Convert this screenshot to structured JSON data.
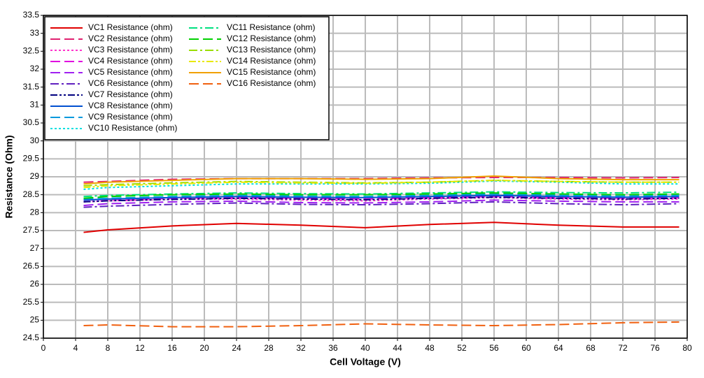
{
  "chart_data": {
    "type": "line",
    "xlabel": "Cell Voltage (V)",
    "ylabel": "Resistance (Ohm)",
    "x": [
      5,
      8,
      16,
      24,
      32,
      40,
      48,
      56,
      64,
      72,
      79
    ],
    "xlim": [
      0,
      80
    ],
    "xticks": [
      0,
      4,
      8,
      12,
      16,
      20,
      24,
      28,
      32,
      36,
      40,
      44,
      48,
      52,
      56,
      60,
      64,
      68,
      72,
      76,
      80
    ],
    "ylim": [
      24.5,
      33.5
    ],
    "yticks": [
      24.5,
      25,
      25.5,
      26,
      26.5,
      27,
      27.5,
      28,
      28.5,
      29,
      29.5,
      30,
      30.5,
      31,
      31.5,
      32,
      32.5,
      33,
      33.5
    ],
    "grid": true,
    "legend": "upper left",
    "series": [
      {
        "name": "VC1 Resistance (ohm)",
        "color": "#e00000",
        "dash": "solid",
        "values": [
          27.45,
          27.52,
          27.63,
          27.7,
          27.65,
          27.58,
          27.67,
          27.73,
          27.65,
          27.6,
          27.6
        ]
      },
      {
        "name": "VC2 Resistance (ohm)",
        "color": "#e0206f",
        "dash": "dashed",
        "values": [
          28.85,
          28.87,
          28.93,
          28.95,
          28.95,
          28.95,
          28.97,
          28.98,
          28.98,
          28.97,
          28.98
        ]
      },
      {
        "name": "VC3 Resistance (ohm)",
        "color": "#ff33cc",
        "dash": "dotted",
        "values": [
          28.3,
          28.33,
          28.37,
          28.38,
          28.35,
          28.33,
          28.38,
          28.42,
          28.38,
          28.36,
          28.38
        ]
      },
      {
        "name": "VC4 Resistance (ohm)",
        "color": "#e000e0",
        "dash": "dashed",
        "values": [
          28.35,
          28.37,
          28.4,
          28.42,
          28.4,
          28.38,
          28.42,
          28.45,
          28.42,
          28.4,
          28.42
        ]
      },
      {
        "name": "VC5 Resistance (ohm)",
        "color": "#a020f0",
        "dash": "dashed",
        "values": [
          28.2,
          28.25,
          28.3,
          28.32,
          28.28,
          28.27,
          28.3,
          28.35,
          28.32,
          28.3,
          28.3
        ]
      },
      {
        "name": "VC6 Resistance (ohm)",
        "color": "#6020c0",
        "dash": "dashdot",
        "values": [
          28.15,
          28.18,
          28.23,
          28.27,
          28.23,
          28.22,
          28.25,
          28.3,
          28.25,
          28.22,
          28.25
        ]
      },
      {
        "name": "VC7 Resistance (ohm)",
        "color": "#000080",
        "dash": "dashdotdot",
        "values": [
          28.3,
          28.33,
          28.37,
          28.4,
          28.38,
          28.36,
          28.4,
          28.43,
          28.4,
          28.38,
          28.4
        ]
      },
      {
        "name": "VC8 Resistance (ohm)",
        "color": "#0050d0",
        "dash": "solid",
        "values": [
          28.35,
          28.38,
          28.42,
          28.45,
          28.43,
          28.42,
          28.45,
          28.48,
          28.45,
          28.43,
          28.45
        ]
      },
      {
        "name": "VC9 Resistance (ohm)",
        "color": "#0099dd",
        "dash": "dashed",
        "values": [
          28.38,
          28.4,
          28.45,
          28.48,
          28.46,
          28.45,
          28.48,
          28.52,
          28.48,
          28.46,
          28.48
        ]
      },
      {
        "name": "VC10 Resistance (ohm)",
        "color": "#00e0e0",
        "dash": "dotted",
        "values": [
          28.65,
          28.7,
          28.75,
          28.8,
          28.8,
          28.8,
          28.82,
          28.88,
          28.85,
          28.8,
          28.8
        ]
      },
      {
        "name": "VC11 Resistance (ohm)",
        "color": "#00e080",
        "dash": "dashdot",
        "values": [
          28.45,
          28.48,
          28.52,
          28.55,
          28.53,
          28.52,
          28.55,
          28.58,
          28.56,
          28.55,
          28.57
        ]
      },
      {
        "name": "VC12 Resistance (ohm)",
        "color": "#00d000",
        "dash": "dashed",
        "values": [
          28.4,
          28.45,
          28.5,
          28.52,
          28.5,
          28.5,
          28.52,
          28.55,
          28.52,
          28.5,
          28.52
        ]
      },
      {
        "name": "VC13 Resistance (ohm)",
        "color": "#99dd00",
        "dash": "dashdot",
        "values": [
          28.75,
          28.78,
          28.83,
          28.87,
          28.85,
          28.83,
          28.85,
          28.9,
          28.87,
          28.85,
          28.85
        ]
      },
      {
        "name": "VC14 Resistance (ohm)",
        "color": "#e8e800",
        "dash": "dashdotdot",
        "values": [
          28.7,
          28.75,
          28.8,
          28.85,
          28.83,
          28.82,
          28.85,
          28.9,
          28.87,
          28.85,
          28.85
        ]
      },
      {
        "name": "VC15 Resistance (ohm)",
        "color": "#f0a000",
        "dash": "solid",
        "values": [
          28.8,
          28.85,
          28.9,
          28.95,
          28.95,
          28.93,
          28.95,
          29.02,
          28.95,
          28.92,
          28.92
        ]
      },
      {
        "name": "VC16 Resistance (ohm)",
        "color": "#f06010",
        "dash": "dashed",
        "values": [
          24.85,
          24.87,
          24.82,
          24.82,
          24.85,
          24.9,
          24.87,
          24.85,
          24.88,
          24.93,
          24.95
        ]
      }
    ]
  }
}
